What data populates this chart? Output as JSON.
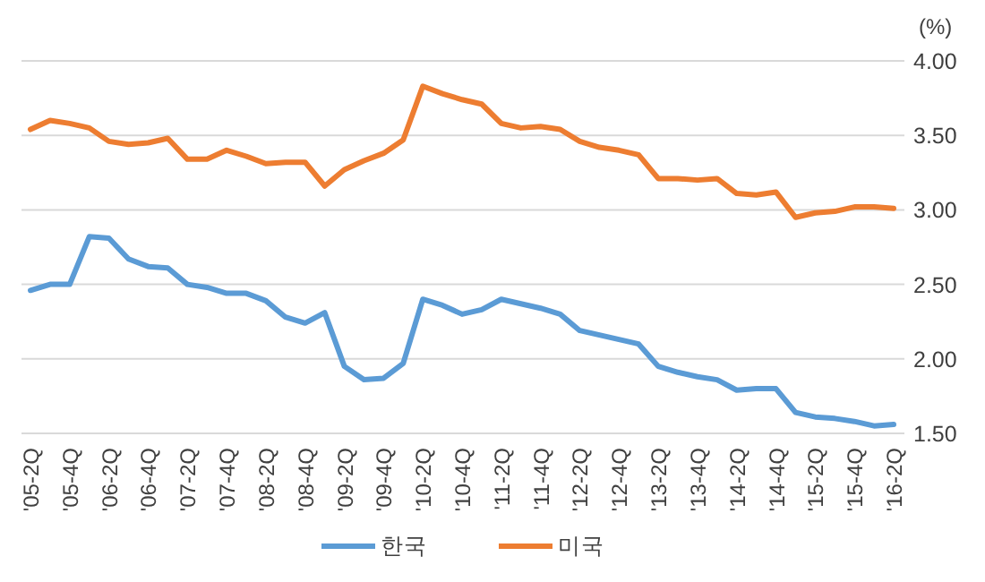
{
  "chart_data": {
    "type": "line",
    "ylabel": "(%)",
    "categories": [
      "'05-2Q",
      null,
      "'05-4Q",
      null,
      "'06-2Q",
      null,
      "'06-4Q",
      null,
      "'07-2Q",
      null,
      "'07-4Q",
      null,
      "'08-2Q",
      null,
      "'08-4Q",
      null,
      "'09-2Q",
      null,
      "'09-4Q",
      null,
      "'10-2Q",
      null,
      "'10-4Q",
      null,
      "'11-2Q",
      null,
      "'11-4Q",
      null,
      "'12-2Q",
      null,
      "'12-4Q",
      null,
      "'13-2Q",
      null,
      "'13-4Q",
      null,
      "'14-2Q",
      null,
      "'14-4Q",
      null,
      "'15-2Q",
      null,
      "'15-4Q",
      null,
      "'16-2Q"
    ],
    "series": [
      {
        "name": "한국",
        "color": "#5b9bd5",
        "values": [
          2.46,
          2.5,
          2.5,
          2.82,
          2.81,
          2.67,
          2.62,
          2.61,
          2.5,
          2.48,
          2.44,
          2.44,
          2.39,
          2.28,
          2.24,
          2.31,
          1.95,
          1.86,
          1.87,
          1.97,
          2.4,
          2.36,
          2.3,
          2.33,
          2.4,
          2.37,
          2.34,
          2.3,
          2.19,
          2.16,
          2.13,
          2.1,
          1.95,
          1.91,
          1.88,
          1.86,
          1.79,
          1.8,
          1.8,
          1.64,
          1.61,
          1.6,
          1.58,
          1.55,
          1.56
        ]
      },
      {
        "name": "미국",
        "color": "#ed7d31",
        "values": [
          3.54,
          3.6,
          3.58,
          3.55,
          3.46,
          3.44,
          3.45,
          3.48,
          3.34,
          3.34,
          3.4,
          3.36,
          3.31,
          3.32,
          3.32,
          3.16,
          3.27,
          3.33,
          3.38,
          3.47,
          3.83,
          3.78,
          3.74,
          3.71,
          3.58,
          3.55,
          3.56,
          3.54,
          3.46,
          3.42,
          3.4,
          3.37,
          3.21,
          3.21,
          3.2,
          3.21,
          3.11,
          3.1,
          3.12,
          2.95,
          2.98,
          2.99,
          3.02,
          3.02,
          3.01
        ]
      }
    ],
    "ylim": [
      1.5,
      4.0
    ],
    "yticks": [
      {
        "value": 1.5,
        "label": "1.50"
      },
      {
        "value": 2,
        "label": "2.00"
      },
      {
        "value": 2.5,
        "label": "2.50"
      },
      {
        "value": 3,
        "label": "3.00"
      },
      {
        "value": 3.5,
        "label": "3.50"
      },
      {
        "value": 4,
        "label": "4.00"
      }
    ],
    "grid": "y",
    "legend": "bottom",
    "line_style": "solid"
  }
}
